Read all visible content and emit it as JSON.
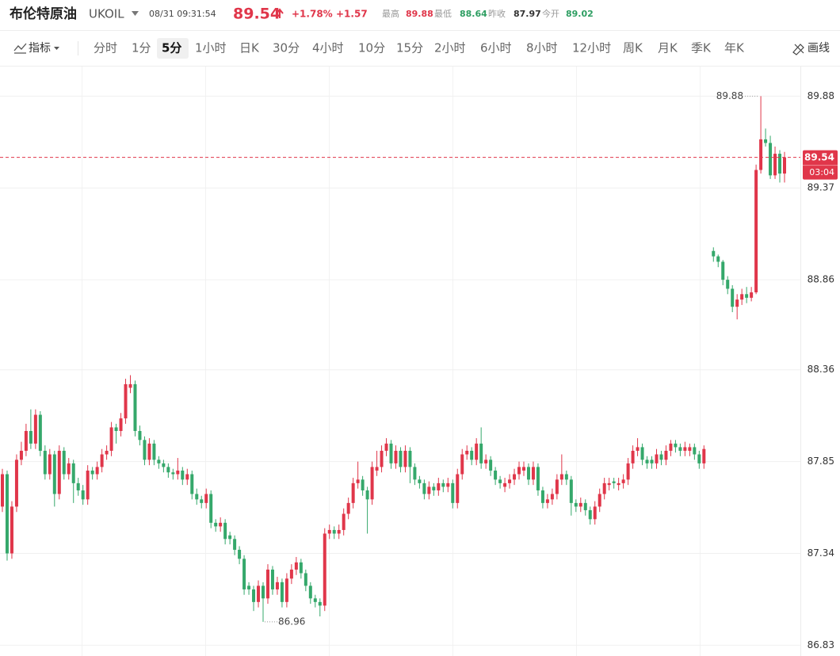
{
  "header": {
    "title": "布伦特原油",
    "symbol": "UKOIL",
    "datetime": "08/31 09:31:54",
    "price": 89.54,
    "change_pct": "+1.78%",
    "change": "+1.57",
    "stats": [
      {
        "label": "最高",
        "value": 89.88,
        "color": "#e0364a"
      },
      {
        "label": "最低",
        "value": 88.64,
        "color": "#2e9e62"
      },
      {
        "label": "昨收",
        "value": 87.97,
        "color": "#333333"
      },
      {
        "label": "今开",
        "value": 89.02,
        "color": "#2e9e62"
      }
    ]
  },
  "toolbar": {
    "indicator": "指标",
    "intervals": [
      "分时",
      "1分",
      "5分",
      "1小时",
      "日K",
      "30分",
      "4小时",
      "10分",
      "15分",
      "2小时",
      "6小时",
      "8小时",
      "12小时",
      "周K",
      "月K",
      "季K",
      "年K"
    ],
    "active_interval": 2,
    "draw_tool": "画线"
  },
  "chart_data": {
    "type": "candlestick",
    "up_color": "#e0364a",
    "down_color": "#35a86b",
    "grid": true,
    "ylim": [
      86.77,
      90.04
    ],
    "yticks": [
      86.83,
      87.34,
      87.85,
      88.36,
      88.86,
      89.37,
      89.88
    ],
    "last_price": 89.54,
    "countdown": "03:04",
    "open": [
      87.6,
      87.78,
      87.34,
      87.6,
      87.86,
      87.91,
      88.02,
      87.95,
      88.11,
      87.91,
      87.78,
      87.89,
      87.67,
      87.91,
      87.78,
      87.84,
      87.73,
      87.69,
      87.64,
      87.8,
      87.78,
      87.82,
      87.89,
      87.91,
      88.04,
      88.02,
      88.09,
      88.26,
      88.28,
      88.02,
      87.97,
      87.86,
      87.95,
      87.86,
      87.84,
      87.82,
      87.79,
      87.78,
      87.8,
      87.75,
      87.78,
      87.67,
      87.64,
      87.62,
      87.67,
      87.51,
      87.49,
      87.51,
      87.44,
      87.42,
      87.36,
      87.31,
      87.16,
      87.14,
      87.07,
      87.16,
      87.09,
      87.25,
      87.14,
      87.18,
      87.07,
      87.2,
      87.25,
      87.29,
      87.23,
      87.16,
      87.09,
      87.07,
      87.05,
      87.45,
      87.47,
      87.45,
      87.47,
      87.56,
      87.62,
      87.73,
      87.75,
      87.69,
      87.64,
      87.8,
      87.82,
      87.91,
      87.95,
      87.84,
      87.91,
      87.82,
      87.91,
      87.82,
      87.75,
      87.73,
      87.67,
      87.71,
      87.69,
      87.73,
      87.71,
      87.73,
      87.62,
      87.78,
      87.89,
      87.91,
      87.86,
      87.95,
      87.84,
      87.86,
      87.8,
      87.75,
      87.71,
      87.73,
      87.75,
      87.78,
      87.8,
      87.82,
      87.75,
      87.82,
      87.69,
      87.62,
      87.64,
      87.67,
      87.75,
      87.78,
      87.75,
      87.62,
      87.6,
      87.62,
      87.58,
      87.53,
      87.6,
      87.67,
      87.72,
      87.74,
      87.72,
      87.73,
      87.75,
      87.84,
      87.91,
      87.93,
      87.86,
      87.86,
      87.84,
      87.89,
      87.86,
      87.91,
      87.95,
      87.93,
      87.91,
      87.91,
      87.93,
      87.89,
      87.84,
      null,
      89.02,
      88.99,
      88.96,
      88.86,
      88.81,
      88.71,
      88.75,
      88.78,
      88.76,
      88.79,
      89.47,
      89.64,
      89.62,
      89.44,
      89.56,
      89.45
    ],
    "high": [
      87.81,
      87.8,
      87.63,
      87.89,
      87.96,
      88.06,
      88.14,
      88.14,
      88.13,
      87.94,
      87.92,
      87.91,
      87.94,
      87.93,
      87.87,
      87.86,
      87.76,
      87.72,
      87.83,
      87.82,
      87.85,
      87.92,
      87.94,
      88.07,
      88.06,
      88.12,
      88.31,
      88.33,
      88.3,
      88.05,
      87.99,
      87.98,
      87.97,
      87.88,
      87.86,
      87.84,
      87.81,
      87.87,
      87.82,
      87.81,
      87.8,
      87.7,
      87.66,
      87.7,
      87.69,
      87.53,
      87.54,
      87.53,
      87.46,
      87.44,
      87.38,
      87.33,
      87.18,
      87.16,
      87.19,
      87.18,
      87.28,
      87.27,
      87.21,
      87.2,
      87.23,
      87.28,
      87.32,
      87.31,
      87.25,
      87.18,
      87.11,
      87.09,
      87.48,
      87.5,
      87.49,
      87.5,
      87.59,
      87.65,
      87.76,
      87.85,
      87.77,
      87.71,
      87.85,
      87.91,
      87.94,
      87.98,
      87.97,
      87.94,
      87.93,
      87.94,
      87.93,
      87.84,
      87.77,
      87.75,
      87.74,
      87.73,
      87.76,
      87.75,
      87.76,
      87.75,
      87.81,
      87.92,
      87.94,
      87.93,
      87.98,
      88.04,
      87.89,
      87.88,
      87.82,
      87.77,
      87.76,
      87.78,
      87.81,
      87.85,
      87.85,
      87.84,
      87.85,
      87.84,
      87.71,
      87.67,
      87.7,
      87.78,
      87.89,
      87.8,
      87.77,
      87.64,
      87.65,
      87.64,
      87.6,
      87.63,
      87.7,
      87.76,
      87.76,
      87.76,
      87.76,
      87.78,
      87.87,
      87.94,
      87.98,
      87.95,
      87.88,
      87.88,
      87.92,
      87.91,
      87.94,
      87.97,
      87.97,
      87.95,
      87.96,
      87.95,
      87.95,
      87.91,
      87.94,
      null,
      89.04,
      89.0,
      88.97,
      88.88,
      88.83,
      88.78,
      88.81,
      88.82,
      88.82,
      89.5,
      89.88,
      89.7,
      89.66,
      89.6,
      89.58,
      89.57
    ],
    "low": [
      87.57,
      87.3,
      87.31,
      87.57,
      87.83,
      87.88,
      87.92,
      87.92,
      87.88,
      87.75,
      87.75,
      87.6,
      87.64,
      87.75,
      87.75,
      87.62,
      87.66,
      87.61,
      87.61,
      87.75,
      87.75,
      87.79,
      87.86,
      87.88,
      87.95,
      87.99,
      88.06,
      88.23,
      87.99,
      87.94,
      87.83,
      87.83,
      87.83,
      87.81,
      87.79,
      87.76,
      87.75,
      87.75,
      87.72,
      87.72,
      87.64,
      87.61,
      87.59,
      87.59,
      87.48,
      87.46,
      87.46,
      87.39,
      87.39,
      87.33,
      87.28,
      87.11,
      87.11,
      87.02,
      87.04,
      86.96,
      87.06,
      87.11,
      87.11,
      87.04,
      87.04,
      87.17,
      87.22,
      87.2,
      87.13,
      87.06,
      87.04,
      86.99,
      87.02,
      87.42,
      87.42,
      87.42,
      87.44,
      87.53,
      87.59,
      87.7,
      87.66,
      87.45,
      87.61,
      87.77,
      87.79,
      87.88,
      87.81,
      87.81,
      87.79,
      87.79,
      87.73,
      87.72,
      87.7,
      87.64,
      87.64,
      87.66,
      87.66,
      87.68,
      87.68,
      87.59,
      87.59,
      87.75,
      87.86,
      87.83,
      87.83,
      87.81,
      87.81,
      87.77,
      87.72,
      87.7,
      87.68,
      87.7,
      87.72,
      87.75,
      87.77,
      87.72,
      87.72,
      87.66,
      87.59,
      87.59,
      87.61,
      87.64,
      87.72,
      87.72,
      87.55,
      87.57,
      87.57,
      87.55,
      87.5,
      87.5,
      87.57,
      87.64,
      87.69,
      87.7,
      87.69,
      87.7,
      87.72,
      87.81,
      87.88,
      87.83,
      87.81,
      87.81,
      87.81,
      87.83,
      87.83,
      87.88,
      87.9,
      87.88,
      87.88,
      87.88,
      87.86,
      87.81,
      87.81,
      null,
      88.96,
      88.93,
      88.83,
      88.78,
      88.68,
      88.64,
      88.72,
      88.73,
      88.74,
      88.78,
      89.45,
      89.6,
      89.42,
      89.42,
      89.4,
      89.4
    ],
    "close": [
      87.78,
      87.34,
      87.6,
      87.86,
      87.91,
      88.02,
      87.95,
      88.11,
      87.91,
      87.78,
      87.89,
      87.67,
      87.91,
      87.78,
      87.84,
      87.73,
      87.69,
      87.64,
      87.8,
      87.78,
      87.82,
      87.89,
      87.91,
      88.04,
      88.02,
      88.09,
      88.28,
      88.28,
      88.02,
      87.97,
      87.86,
      87.95,
      87.86,
      87.84,
      87.82,
      87.79,
      87.78,
      87.8,
      87.75,
      87.78,
      87.67,
      87.64,
      87.62,
      87.67,
      87.51,
      87.49,
      87.51,
      87.42,
      87.42,
      87.36,
      87.31,
      87.14,
      87.14,
      87.07,
      87.16,
      87.09,
      87.25,
      87.14,
      87.18,
      87.07,
      87.2,
      87.25,
      87.29,
      87.23,
      87.16,
      87.09,
      87.07,
      87.05,
      87.45,
      87.47,
      87.45,
      87.47,
      87.56,
      87.62,
      87.73,
      87.75,
      87.69,
      87.64,
      87.82,
      87.82,
      87.91,
      87.95,
      87.84,
      87.91,
      87.82,
      87.91,
      87.82,
      87.75,
      87.73,
      87.67,
      87.71,
      87.69,
      87.73,
      87.71,
      87.73,
      87.62,
      87.78,
      87.89,
      87.91,
      87.86,
      87.95,
      87.84,
      87.86,
      87.8,
      87.75,
      87.73,
      87.73,
      87.75,
      87.78,
      87.82,
      87.82,
      87.75,
      87.82,
      87.69,
      87.62,
      87.64,
      87.67,
      87.75,
      87.78,
      87.75,
      87.62,
      87.6,
      87.62,
      87.58,
      87.53,
      87.6,
      87.67,
      87.73,
      87.73,
      87.73,
      87.73,
      87.75,
      87.84,
      87.91,
      87.93,
      87.86,
      87.84,
      87.84,
      87.89,
      87.86,
      87.91,
      87.95,
      87.93,
      87.91,
      87.93,
      87.93,
      87.89,
      87.84,
      87.92,
      null,
      88.99,
      88.96,
      88.86,
      88.81,
      88.71,
      88.75,
      88.78,
      88.76,
      88.79,
      89.47,
      89.64,
      89.62,
      89.44,
      89.56,
      89.45,
      89.54
    ]
  }
}
